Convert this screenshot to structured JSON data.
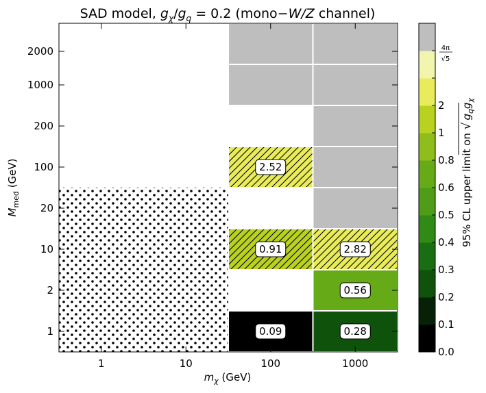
{
  "chart_data": {
    "type": "heatmap",
    "title_parts": [
      "SAD model, ",
      "g",
      "χ",
      "/",
      "g",
      "q",
      "  = 0.2 (mono−",
      "W/Z",
      "  channel)"
    ],
    "xlabel_parts": [
      "m",
      "χ",
      " (GeV)"
    ],
    "ylabel_parts": [
      "M",
      "med",
      " (GeV)"
    ],
    "x_scale": "log",
    "y_scale": "log",
    "x_ticks": [
      {
        "value": 1,
        "label": "1"
      },
      {
        "value": 10,
        "label": "10"
      },
      {
        "value": 100,
        "label": "100"
      },
      {
        "value": 1000,
        "label": "1000"
      }
    ],
    "y_ticks": [
      {
        "value": 1,
        "label": "1"
      },
      {
        "value": 2,
        "label": "2"
      },
      {
        "value": 10,
        "label": "10"
      },
      {
        "value": 20,
        "label": "20"
      },
      {
        "value": 100,
        "label": "100"
      },
      {
        "value": 200,
        "label": "200"
      },
      {
        "value": 1000,
        "label": "1000"
      },
      {
        "value": 2000,
        "label": "2000"
      }
    ],
    "x_bins": [
      {
        "m_chi": 1
      },
      {
        "m_chi": 10
      },
      {
        "m_chi": 100
      },
      {
        "m_chi": 1000
      }
    ],
    "y_bins": [
      {
        "M_med": 1
      },
      {
        "M_med": 2
      },
      {
        "M_med": 10
      },
      {
        "M_med": 20
      },
      {
        "M_med": 100
      },
      {
        "M_med": 200
      },
      {
        "M_med": 1000
      },
      {
        "M_med": 2000
      }
    ],
    "hatched_region": {
      "pattern": "dots",
      "m_chi": [
        1,
        10
      ],
      "M_med": [
        1,
        20
      ]
    },
    "cells": [
      {
        "m_chi": 100,
        "M_med": 1,
        "value": 0.09,
        "label": "0.09",
        "color": "#000000",
        "hatch": false
      },
      {
        "m_chi": 1000,
        "M_med": 1,
        "value": 0.28,
        "label": "0.28",
        "color": "#0e520c",
        "hatch": false
      },
      {
        "m_chi": 1000,
        "M_med": 2,
        "value": 0.56,
        "label": "0.56",
        "color": "#66ab17",
        "hatch": false
      },
      {
        "m_chi": 100,
        "M_med": 10,
        "value": 0.91,
        "label": "0.91",
        "color": "#b9d21f",
        "hatch": true
      },
      {
        "m_chi": 1000,
        "M_med": 10,
        "value": 2.82,
        "label": "2.82",
        "color": "#e9ec5a",
        "hatch": true
      },
      {
        "m_chi": 1000,
        "M_med": 20,
        "label": "",
        "color": "#bebebe",
        "hatch": false
      },
      {
        "m_chi": 100,
        "M_med": 100,
        "value": 2.52,
        "label": "2.52",
        "color": "#e9ec5a",
        "hatch": true
      },
      {
        "m_chi": 1000,
        "M_med": 100,
        "label": "",
        "color": "#bebebe",
        "hatch": false
      },
      {
        "m_chi": 1000,
        "M_med": 200,
        "label": "",
        "color": "#bebebe",
        "hatch": false
      },
      {
        "m_chi": 100,
        "M_med": 1000,
        "label": "",
        "color": "#bebebe",
        "hatch": false
      },
      {
        "m_chi": 1000,
        "M_med": 1000,
        "label": "",
        "color": "#bebebe",
        "hatch": false
      },
      {
        "m_chi": 100,
        "M_med": 2000,
        "label": "",
        "color": "#bebebe",
        "hatch": false
      },
      {
        "m_chi": 1000,
        "M_med": 2000,
        "label": "",
        "color": "#bebebe",
        "hatch": false
      }
    ],
    "colorbar": {
      "label_parts": [
        "95% CL upper limit on ",
        "√",
        "g",
        "q",
        "g",
        "χ"
      ],
      "top_label_parts": [
        "4π",
        "√5"
      ],
      "levels": [
        {
          "label": "0.0",
          "color": "#000000"
        },
        {
          "label": "0.1",
          "color": "#062106"
        },
        {
          "label": "0.2",
          "color": "#0e520c"
        },
        {
          "label": "0.3",
          "color": "#1a6e12"
        },
        {
          "label": "0.4",
          "color": "#318a15"
        },
        {
          "label": "0.5",
          "color": "#4e9c18"
        },
        {
          "label": "0.6",
          "color": "#66ab17"
        },
        {
          "label": "0.8",
          "color": "#8fbd1b"
        },
        {
          "label": "1",
          "color": "#b9d21f"
        },
        {
          "label": "2",
          "color": "#e9ec5a"
        },
        {
          "label": "",
          "color": "#f2f5ad"
        },
        {
          "label": "",
          "color": "#bebebe"
        }
      ]
    }
  }
}
